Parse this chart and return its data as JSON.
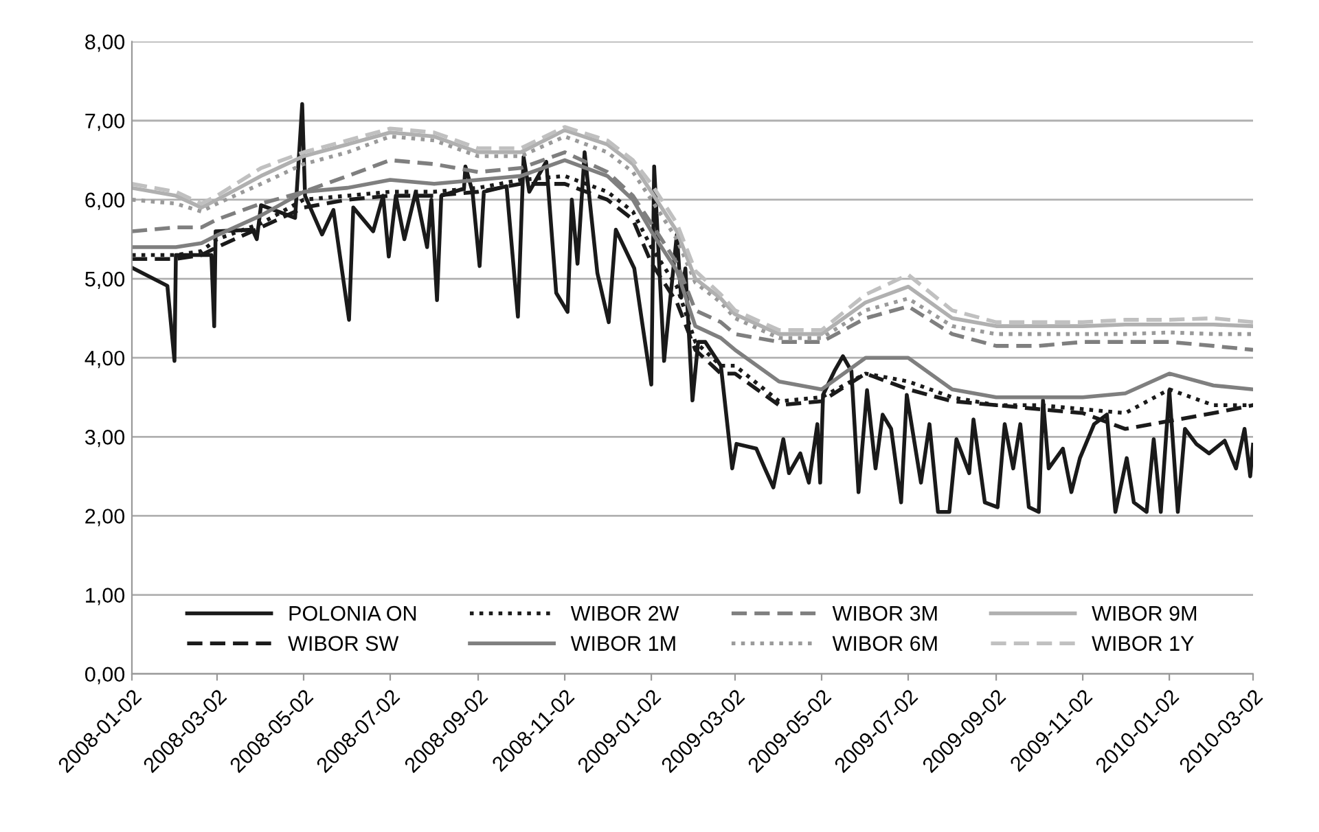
{
  "chart_data": {
    "type": "line",
    "x": [
      "2008-01-02",
      "2008-02-02",
      "2008-02-20",
      "2008-03-02",
      "2008-04-02",
      "2008-05-02",
      "2008-06-02",
      "2008-07-02",
      "2008-08-02",
      "2008-09-02",
      "2008-10-02",
      "2008-11-02",
      "2008-12-02",
      "2008-12-20",
      "2009-01-02",
      "2009-01-20",
      "2009-02-02",
      "2009-02-20",
      "2009-03-02",
      "2009-04-02",
      "2009-05-02",
      "2009-06-02",
      "2009-07-02",
      "2009-08-02",
      "2009-09-02",
      "2009-10-02",
      "2009-11-02",
      "2009-12-02",
      "2010-01-02",
      "2010-02-02",
      "2010-03-02"
    ],
    "series": [
      {
        "name": "POLONIA ON",
        "color": "#1a1a1a",
        "line_style": "solid",
        "x": [
          "2008-01-03",
          "2008-01-27",
          "2008-02-01",
          "2008-02-02",
          "2008-02-27",
          "2008-02-29",
          "2008-03-01",
          "2008-03-27",
          "2008-03-30",
          "2008-04-02",
          "2008-04-26",
          "2008-05-01",
          "2008-05-03",
          "2008-05-15",
          "2008-05-23",
          "2008-06-03",
          "2008-06-06",
          "2008-06-20",
          "2008-06-27",
          "2008-07-01",
          "2008-07-06",
          "2008-07-12",
          "2008-07-20",
          "2008-07-28",
          "2008-07-31",
          "2008-08-04",
          "2008-08-07",
          "2008-08-23",
          "2008-08-24",
          "2008-08-29",
          "2008-09-03",
          "2008-09-06",
          "2008-09-22",
          "2008-09-30",
          "2008-10-04",
          "2008-10-08",
          "2008-10-20",
          "2008-10-27",
          "2008-11-04",
          "2008-11-07",
          "2008-11-11",
          "2008-11-16",
          "2008-11-25",
          "2008-12-03",
          "2008-12-08",
          "2008-12-21",
          "2008-12-27",
          "2009-01-02",
          "2009-01-04",
          "2009-01-11",
          "2009-01-14",
          "2009-01-20",
          "2009-01-23",
          "2009-01-26",
          "2009-01-31",
          "2009-02-04",
          "2009-02-09",
          "2009-02-20",
          "2009-02-28",
          "2009-03-03",
          "2009-03-17",
          "2009-03-23",
          "2009-03-29",
          "2009-04-05",
          "2009-04-09",
          "2009-04-17",
          "2009-04-23",
          "2009-04-29",
          "2009-05-01",
          "2009-05-03",
          "2009-05-11",
          "2009-05-17",
          "2009-05-23",
          "2009-05-28",
          "2009-06-03",
          "2009-06-09",
          "2009-06-14",
          "2009-06-20",
          "2009-06-27",
          "2009-07-01",
          "2009-07-11",
          "2009-07-17",
          "2009-07-23",
          "2009-07-31",
          "2009-08-05",
          "2009-08-14",
          "2009-08-17",
          "2009-08-25",
          "2009-09-03",
          "2009-09-08",
          "2009-09-14",
          "2009-09-19",
          "2009-09-25",
          "2009-10-02",
          "2009-10-05",
          "2009-10-09",
          "2009-10-19",
          "2009-10-25",
          "2009-10-31",
          "2009-11-10",
          "2009-11-19",
          "2009-11-25",
          "2009-12-03",
          "2009-12-08",
          "2009-12-17",
          "2009-12-22",
          "2009-12-27",
          "2010-01-02",
          "2010-01-08",
          "2010-01-13",
          "2010-01-21",
          "2010-01-30",
          "2010-02-10",
          "2010-02-18",
          "2010-02-24",
          "2010-02-28",
          "2010-03-02"
        ],
        "values": [
          5.13,
          4.91,
          3.96,
          5.3,
          5.3,
          4.4,
          5.6,
          5.62,
          5.5,
          5.93,
          5.77,
          7.21,
          6.05,
          5.56,
          5.87,
          4.48,
          5.9,
          5.6,
          6.05,
          5.28,
          6.05,
          5.5,
          6.1,
          5.4,
          6.0,
          4.73,
          6.05,
          6.14,
          6.42,
          6.1,
          5.16,
          6.1,
          6.17,
          4.52,
          6.54,
          6.1,
          6.48,
          4.82,
          4.58,
          6.0,
          5.19,
          6.6,
          5.07,
          4.45,
          5.62,
          5.13,
          4.39,
          3.66,
          6.42,
          3.96,
          4.51,
          5.56,
          4.76,
          5.13,
          3.46,
          4.2,
          4.2,
          3.9,
          2.6,
          2.91,
          2.85,
          2.6,
          2.36,
          2.97,
          2.54,
          2.79,
          2.42,
          3.16,
          2.42,
          3.53,
          3.83,
          4.02,
          3.83,
          2.3,
          3.59,
          2.6,
          3.28,
          3.1,
          2.17,
          3.53,
          2.42,
          3.16,
          2.05,
          2.05,
          2.97,
          2.54,
          3.22,
          2.17,
          2.11,
          3.16,
          2.6,
          3.16,
          2.11,
          2.05,
          3.46,
          2.6,
          2.85,
          2.3,
          2.73,
          3.16,
          3.28,
          2.05,
          2.73,
          2.17,
          2.05,
          2.97,
          2.05,
          3.59,
          2.05,
          3.1,
          2.91,
          2.79,
          2.95,
          2.6,
          3.1,
          2.5,
          2.9
        ]
      },
      {
        "name": "WIBOR SW",
        "color": "#1a1a1a",
        "line_style": "dashed",
        "values": [
          5.25,
          5.25,
          5.3,
          5.4,
          5.65,
          5.9,
          6.0,
          6.05,
          6.05,
          6.1,
          6.2,
          6.2,
          6.0,
          5.75,
          5.2,
          4.7,
          4.1,
          3.8,
          3.8,
          3.4,
          3.45,
          3.8,
          3.6,
          3.45,
          3.4,
          3.35,
          3.3,
          3.1,
          3.2,
          3.3,
          3.4
        ]
      },
      {
        "name": "WIBOR 2W",
        "color": "#1a1a1a",
        "line_style": "dotted",
        "values": [
          5.3,
          5.3,
          5.35,
          5.5,
          5.7,
          6.0,
          6.05,
          6.1,
          6.1,
          6.15,
          6.25,
          6.3,
          6.1,
          5.85,
          5.4,
          4.9,
          4.2,
          3.9,
          3.9,
          3.45,
          3.5,
          3.8,
          3.7,
          3.5,
          3.4,
          3.4,
          3.35,
          3.3,
          3.6,
          3.4,
          3.4
        ]
      },
      {
        "name": "WIBOR 1M",
        "color": "#7f7f7f",
        "line_style": "solid",
        "values": [
          5.4,
          5.4,
          5.45,
          5.55,
          5.8,
          6.1,
          6.15,
          6.25,
          6.2,
          6.25,
          6.3,
          6.5,
          6.3,
          6.0,
          5.6,
          5.1,
          4.4,
          4.25,
          4.1,
          3.7,
          3.6,
          4.0,
          4.0,
          3.6,
          3.5,
          3.5,
          3.5,
          3.55,
          3.8,
          3.65,
          3.6
        ]
      },
      {
        "name": "WIBOR 3M",
        "color": "#7f7f7f",
        "line_style": "dashed",
        "values": [
          5.6,
          5.65,
          5.65,
          5.75,
          5.95,
          6.1,
          6.3,
          6.5,
          6.45,
          6.35,
          6.4,
          6.6,
          6.35,
          6.05,
          5.7,
          5.2,
          4.6,
          4.45,
          4.3,
          4.2,
          4.2,
          4.5,
          4.65,
          4.3,
          4.15,
          4.15,
          4.2,
          4.2,
          4.2,
          4.15,
          4.1
        ]
      },
      {
        "name": "WIBOR 6M",
        "color": "#9a9a9a",
        "line_style": "dotted",
        "values": [
          6.0,
          5.95,
          5.85,
          5.95,
          6.2,
          6.45,
          6.6,
          6.8,
          6.75,
          6.55,
          6.55,
          6.8,
          6.6,
          6.35,
          6.0,
          5.5,
          4.95,
          4.7,
          4.5,
          4.25,
          4.25,
          4.6,
          4.75,
          4.4,
          4.3,
          4.3,
          4.3,
          4.3,
          4.32,
          4.3,
          4.3
        ]
      },
      {
        "name": "WIBOR 9M",
        "color": "#b0b0b0",
        "line_style": "solid",
        "values": [
          6.15,
          6.05,
          5.9,
          6.0,
          6.3,
          6.55,
          6.7,
          6.85,
          6.8,
          6.6,
          6.6,
          6.88,
          6.7,
          6.45,
          6.1,
          5.6,
          5.0,
          4.75,
          4.55,
          4.3,
          4.3,
          4.7,
          4.9,
          4.5,
          4.4,
          4.4,
          4.4,
          4.42,
          4.42,
          4.42,
          4.4
        ]
      },
      {
        "name": "WIBOR 1Y",
        "color": "#c0c0c0",
        "line_style": "dashed",
        "values": [
          6.2,
          6.1,
          5.95,
          6.05,
          6.4,
          6.6,
          6.75,
          6.9,
          6.85,
          6.65,
          6.65,
          6.92,
          6.75,
          6.5,
          6.2,
          5.7,
          5.1,
          4.8,
          4.6,
          4.35,
          4.35,
          4.8,
          5.05,
          4.6,
          4.45,
          4.45,
          4.45,
          4.48,
          4.48,
          4.5,
          4.45
        ]
      }
    ],
    "xlim": [
      "2008-01-02",
      "2010-03-02"
    ],
    "xticks": [
      "2008-01-02",
      "2008-03-02",
      "2008-05-02",
      "2008-07-02",
      "2008-09-02",
      "2008-11-02",
      "2009-01-02",
      "2009-03-02",
      "2009-05-02",
      "2009-07-02",
      "2009-09-02",
      "2009-11-02",
      "2010-01-02",
      "2010-03-02"
    ],
    "ylim": [
      0,
      8
    ],
    "yticks": [
      {
        "value": 0,
        "label": "0,00"
      },
      {
        "value": 1,
        "label": "1,00"
      },
      {
        "value": 2,
        "label": "2,00"
      },
      {
        "value": 3,
        "label": "3,00"
      },
      {
        "value": 4,
        "label": "4,00"
      },
      {
        "value": 5,
        "label": "5,00"
      },
      {
        "value": 6,
        "label": "6,00"
      },
      {
        "value": 7,
        "label": "7,00"
      },
      {
        "value": 8,
        "label": "8,00"
      }
    ],
    "grid": "y",
    "legend": "bottom"
  }
}
